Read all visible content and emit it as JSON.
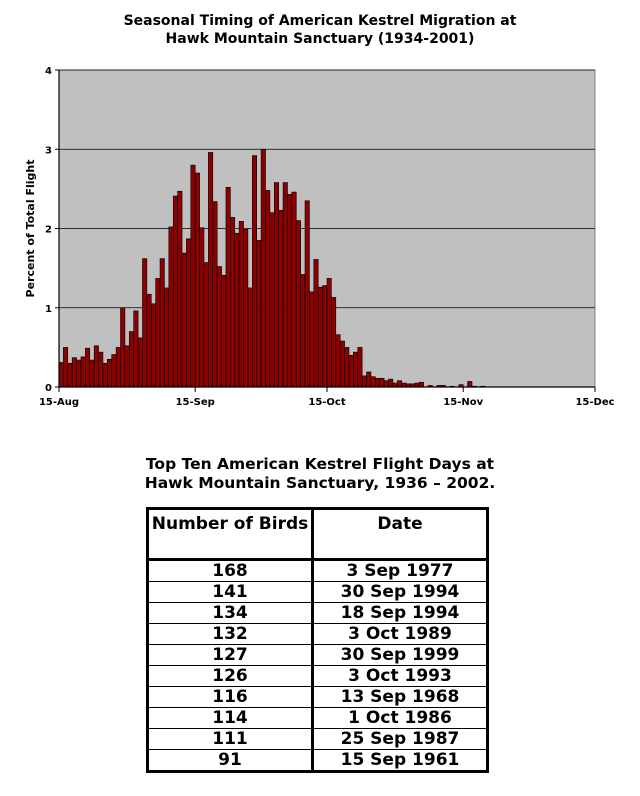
{
  "chart_data": {
    "type": "bar",
    "title_lines": [
      "Seasonal Timing of American Kestrel Migration at",
      "Hawk Mountain Sanctuary (1934-2001)"
    ],
    "xlabel": "",
    "ylabel": "Percent of Total Flight",
    "ylim": [
      0,
      4
    ],
    "yticks": [
      "0",
      "1",
      "2",
      "3",
      "4"
    ],
    "xticks": [
      "15-Aug",
      "15-Sep",
      "15-Oct",
      "15-Nov",
      "15-Dec"
    ],
    "grid": true,
    "series_color": "#8b0000",
    "series": [
      {
        "start_date": "15-Aug",
        "values": [
          0.31,
          0.5,
          0.3,
          0.37,
          0.34,
          0.38,
          0.49,
          0.34,
          0.52,
          0.44,
          0.3,
          0.35,
          0.41,
          0.5,
          1.0,
          0.52,
          0.7,
          0.96,
          0.62,
          1.62,
          1.17,
          1.05,
          1.37,
          1.62,
          1.25,
          2.02,
          2.41,
          2.47,
          1.69,
          1.87,
          2.8,
          2.7,
          2.01,
          1.57,
          2.96,
          2.34,
          1.52,
          1.41,
          2.52,
          2.14,
          1.94,
          2.09,
          1.99,
          1.25,
          2.92,
          1.85,
          3.0,
          2.48,
          2.2,
          2.58,
          2.23,
          2.58,
          2.43,
          2.46,
          2.1,
          1.42,
          2.35,
          1.2,
          1.61,
          1.26,
          1.28,
          1.37,
          1.13,
          0.66,
          0.58,
          0.5,
          0.4,
          0.44,
          0.5,
          0.14,
          0.19,
          0.13,
          0.11,
          0.11,
          0.08,
          0.1,
          0.05,
          0.08,
          0.05,
          0.04,
          0.04,
          0.05,
          0.06,
          0.0,
          0.02,
          0.0,
          0.02,
          0.02,
          0.0,
          0.01,
          0.0,
          0.03,
          0.0,
          0.07,
          0.01,
          0.0,
          0.01,
          0.0,
          0.0
        ]
      }
    ]
  },
  "table": {
    "title_lines": [
      "Top Ten American Kestrel Flight Days at",
      "Hawk Mountain Sanctuary, 1936 – 2002."
    ],
    "headers": [
      "Number of Birds",
      "Date"
    ],
    "rows": [
      [
        "168",
        "3 Sep 1977"
      ],
      [
        "141",
        "30 Sep 1994"
      ],
      [
        "134",
        "18 Sep 1994"
      ],
      [
        "132",
        "3 Oct 1989"
      ],
      [
        "127",
        "30 Sep 1999"
      ],
      [
        "126",
        "3 Oct 1993"
      ],
      [
        "116",
        "13 Sep 1968"
      ],
      [
        "114",
        "1 Oct 1986"
      ],
      [
        "111",
        "25 Sep 1987"
      ],
      [
        "91",
        "15 Sep 1961"
      ]
    ]
  }
}
